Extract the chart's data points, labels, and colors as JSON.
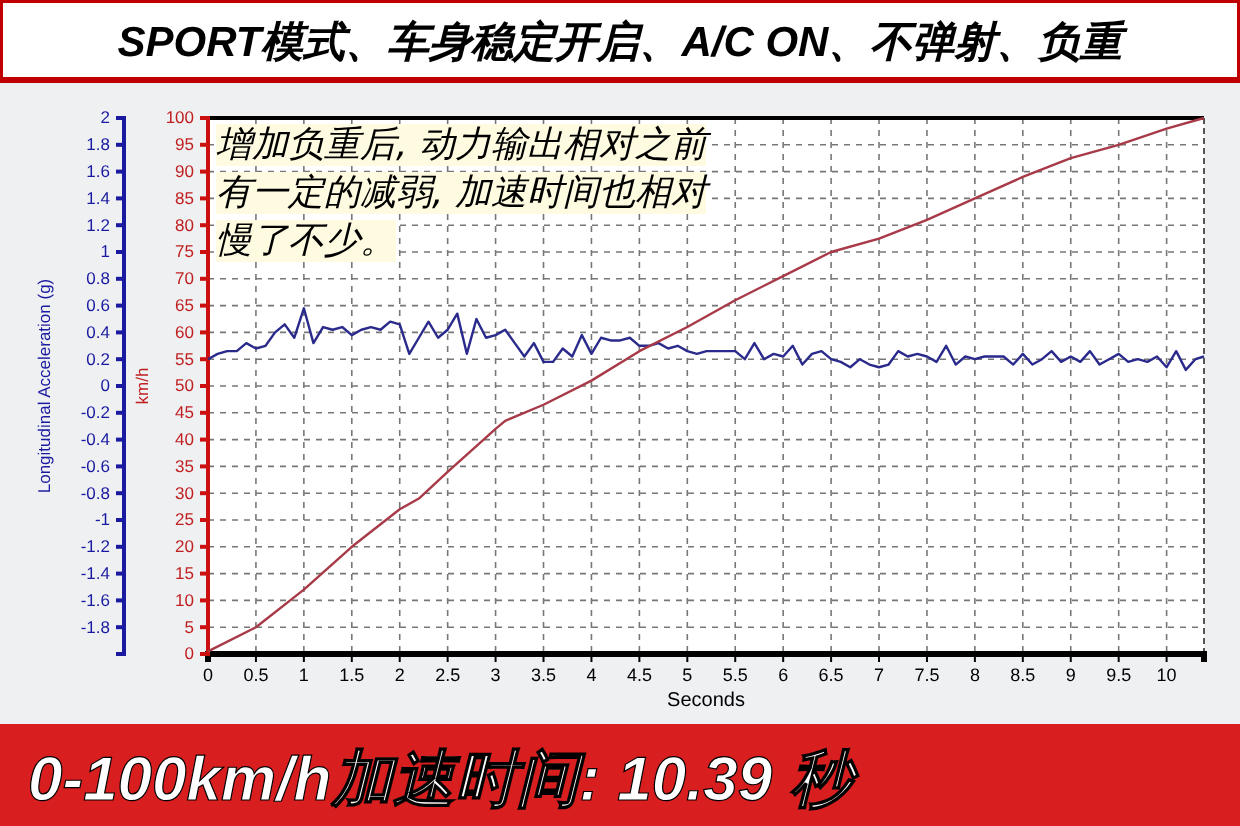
{
  "chart_data": {
    "type": "line",
    "title": "SPORT模式、车身稳定开启、A/C ON、不弹射、负重",
    "xlabel": "Seconds",
    "ylabel": "Longitudinal Acceleration (g)",
    "y2label": "km/h",
    "annotations": [
      "增加负重后, 动力输出相对之前有一定的减弱, 加速时间也相对慢了不少。",
      "0-100km/h加速时间: 10.39 秒"
    ],
    "xlim": [
      0,
      10.39
    ],
    "xticks": [
      0,
      0.5,
      1,
      1.5,
      2,
      2.5,
      3,
      3.5,
      4,
      4.5,
      5,
      5.5,
      6,
      6.5,
      7,
      7.5,
      8,
      8.5,
      9,
      9.5,
      10
    ],
    "ylim": [
      -2,
      2
    ],
    "yticks": [
      -1.8,
      -1.6,
      -1.4,
      -1.2,
      -1,
      -0.8,
      -0.6,
      -0.4,
      -0.2,
      0,
      0.2,
      0.4,
      0.6,
      0.8,
      1,
      1.2,
      1.4,
      1.6,
      1.8,
      2
    ],
    "y2lim": [
      0,
      100
    ],
    "y2ticks": [
      0,
      5,
      10,
      15,
      20,
      25,
      30,
      35,
      40,
      45,
      50,
      55,
      60,
      65,
      70,
      75,
      80,
      85,
      90,
      95,
      100
    ],
    "grid": true,
    "line_style": "solid",
    "marker": "none",
    "series": [
      {
        "color": "#2a2a8c",
        "x": [
          0,
          0.1,
          0.2,
          0.3,
          0.4,
          0.5,
          0.6,
          0.7,
          0.8,
          0.9,
          1,
          1.1,
          1.2,
          1.3,
          1.4,
          1.5,
          1.6,
          1.7,
          1.8,
          1.9,
          2,
          2.1,
          2.2,
          2.3,
          2.4,
          2.5,
          2.6,
          2.7,
          2.8,
          2.9,
          3,
          3.1,
          3.2,
          3.3,
          3.4,
          3.5,
          3.6,
          3.7,
          3.8,
          3.9,
          4,
          4.1,
          4.2,
          4.3,
          4.4,
          4.5,
          4.6,
          4.7,
          4.8,
          4.9,
          5,
          5.1,
          5.2,
          5.4,
          5.5,
          5.6,
          5.7,
          5.8,
          5.9,
          6,
          6.1,
          6.2,
          6.3,
          6.4,
          6.5,
          6.6,
          6.7,
          6.8,
          6.9,
          7,
          7.1,
          7.2,
          7.3,
          7.4,
          7.5,
          7.6,
          7.7,
          7.8,
          7.9,
          8,
          8.1,
          8.2,
          8.3,
          8.4,
          8.5,
          8.6,
          8.7,
          8.8,
          8.9,
          9,
          9.1,
          9.2,
          9.3,
          9.4,
          9.5,
          9.6,
          9.7,
          9.8,
          9.9,
          10,
          10.1,
          10.2,
          10.3,
          10.39
        ],
        "values": [
          0.2,
          0.24,
          0.26,
          0.26,
          0.32,
          0.28,
          0.3,
          0.4,
          0.46,
          0.36,
          0.58,
          0.32,
          0.44,
          0.42,
          0.44,
          0.38,
          0.42,
          0.44,
          0.42,
          0.48,
          0.46,
          0.24,
          0.36,
          0.48,
          0.36,
          0.42,
          0.54,
          0.24,
          0.5,
          0.36,
          0.38,
          0.42,
          0.32,
          0.22,
          0.32,
          0.18,
          0.18,
          0.28,
          0.22,
          0.38,
          0.24,
          0.36,
          0.34,
          0.34,
          0.36,
          0.3,
          0.3,
          0.32,
          0.28,
          0.3,
          0.26,
          0.24,
          0.26,
          0.26,
          0.26,
          0.2,
          0.32,
          0.2,
          0.24,
          0.22,
          0.3,
          0.16,
          0.24,
          0.26,
          0.2,
          0.18,
          0.14,
          0.2,
          0.16,
          0.14,
          0.16,
          0.26,
          0.22,
          0.24,
          0.22,
          0.18,
          0.3,
          0.16,
          0.22,
          0.2,
          0.22,
          0.22,
          0.22,
          0.16,
          0.24,
          0.16,
          0.2,
          0.26,
          0.18,
          0.22,
          0.18,
          0.26,
          0.16,
          0.2,
          0.24,
          0.18,
          0.2,
          0.18,
          0.22,
          0.14,
          0.26,
          0.12,
          0.2,
          0.22
        ]
      },
      {
        "color": "#a83a48",
        "axis": "y2",
        "x": [
          0,
          0.5,
          1,
          1.5,
          2,
          2.2,
          2.5,
          3,
          3.1,
          3.5,
          4,
          4.5,
          5,
          5.5,
          6,
          6.5,
          7,
          7.5,
          8,
          8.5,
          9,
          9.5,
          10,
          10.39
        ],
        "values": [
          0.5,
          5,
          12,
          20,
          27,
          29,
          34,
          42,
          43.5,
          46.5,
          51,
          56.5,
          61,
          66,
          70.5,
          75,
          77.5,
          81,
          85,
          89,
          92.5,
          95,
          98,
          100
        ]
      }
    ]
  }
}
